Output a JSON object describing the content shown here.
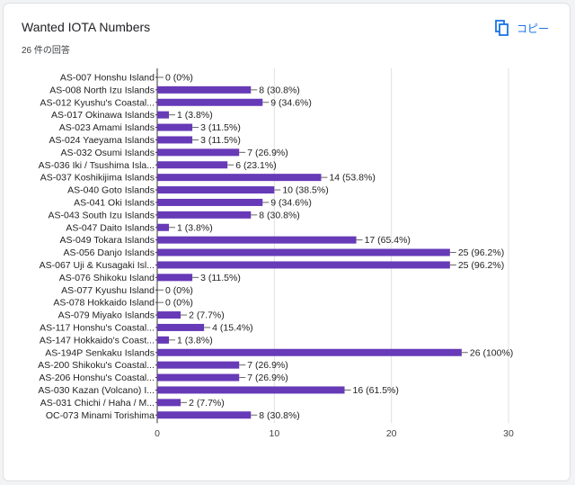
{
  "header": {
    "title": "Wanted IOTA Numbers",
    "response_count": "26 件の回答",
    "copy_label": "コピー",
    "accent_color": "#1a73e8"
  },
  "chart_data": {
    "type": "bar",
    "orientation": "horizontal",
    "title": "Wanted IOTA Numbers",
    "xlabel": "",
    "ylabel": "",
    "xlim": [
      0,
      30
    ],
    "xticks": [
      0,
      10,
      20,
      30
    ],
    "grid": true,
    "bar_color": "#673ab7",
    "categories": [
      "AS-007 Honshu Island",
      "AS-008 North Izu Islands",
      "AS-012 Kyushu's Coastal...",
      "AS-017 Okinawa Islands",
      "AS-023 Amami Islands",
      "AS-024 Yaeyama Islands",
      "AS-032 Osumi Islands",
      "AS-036 Iki / Tsushima Isla...",
      "AS-037 Koshikijima Islands",
      "AS-040 Goto Islands",
      "AS-041 Oki Islands",
      "AS-043 South Izu Islands",
      "AS-047 Daito Islands",
      "AS-049 Tokara Islands",
      "AS-056 Danjo Islands",
      "AS-067 Uji & Kusagaki Isl...",
      "AS-076 Shikoku Island",
      "AS-077 Kyushu Island",
      "AS-078 Hokkaido Island",
      "AS-079 Miyako Islands",
      "AS-117 Honshu's Coastal...",
      "AS-147 Hokkaido's Coast...",
      "AS-194P Senkaku Islands",
      "AS-200 Shikoku's Coastal...",
      "AS-206 Honshu's Coastal...",
      "AS-030 Kazan (Volcano) I...",
      "AS-031 Chichi / Haha / M...",
      "OC-073 Minami Torishima"
    ],
    "values": [
      0,
      8,
      9,
      1,
      3,
      3,
      7,
      6,
      14,
      10,
      9,
      8,
      1,
      17,
      25,
      25,
      3,
      0,
      0,
      2,
      4,
      1,
      26,
      7,
      7,
      16,
      2,
      8
    ],
    "value_labels": [
      "0 (0%)",
      "8 (30.8%)",
      "9 (34.6%)",
      "1 (3.8%)",
      "3 (11.5%)",
      "3 (11.5%)",
      "7 (26.9%)",
      "6 (23.1%)",
      "14 (53.8%)",
      "10 (38.5%)",
      "9 (34.6%)",
      "8 (30.8%)",
      "1 (3.8%)",
      "17 (65.4%)",
      "25 (96.2%)",
      "25 (96.2%)",
      "3 (11.5%)",
      "0 (0%)",
      "0 (0%)",
      "2 (7.7%)",
      "4 (15.4%)",
      "1 (3.8%)",
      "26 (100%)",
      "7 (26.9%)",
      "7 (26.9%)",
      "16 (61.5%)",
      "2 (7.7%)",
      "8 (30.8%)"
    ]
  }
}
